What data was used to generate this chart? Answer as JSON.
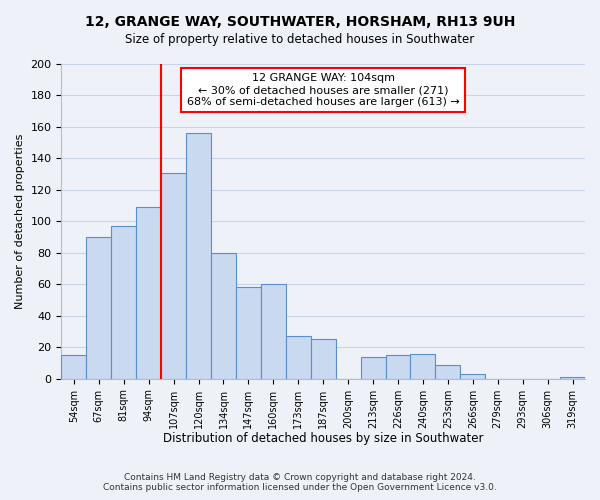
{
  "title": "12, GRANGE WAY, SOUTHWATER, HORSHAM, RH13 9UH",
  "subtitle": "Size of property relative to detached houses in Southwater",
  "xlabel": "Distribution of detached houses by size in Southwater",
  "ylabel": "Number of detached properties",
  "footer_line1": "Contains HM Land Registry data © Crown copyright and database right 2024.",
  "footer_line2": "Contains public sector information licensed under the Open Government Licence v3.0.",
  "bar_labels": [
    "54sqm",
    "67sqm",
    "81sqm",
    "94sqm",
    "107sqm",
    "120sqm",
    "134sqm",
    "147sqm",
    "160sqm",
    "173sqm",
    "187sqm",
    "200sqm",
    "213sqm",
    "226sqm",
    "240sqm",
    "253sqm",
    "266sqm",
    "279sqm",
    "293sqm",
    "306sqm",
    "319sqm"
  ],
  "bar_values": [
    15,
    90,
    97,
    109,
    131,
    156,
    80,
    58,
    60,
    27,
    25,
    0,
    14,
    15,
    16,
    9,
    3,
    0,
    0,
    0,
    1
  ],
  "bar_color": "#c8d9f0",
  "bar_edge_color": "#5b8fc9",
  "vline_x_idx": 4,
  "vline_color": "red",
  "annotation_title": "12 GRANGE WAY: 104sqm",
  "annotation_line1": "← 30% of detached houses are smaller (271)",
  "annotation_line2": "68% of semi-detached houses are larger (613) →",
  "annotation_box_color": "white",
  "annotation_box_edge_color": "red",
  "ylim": [
    0,
    200
  ],
  "yticks": [
    0,
    20,
    40,
    60,
    80,
    100,
    120,
    140,
    160,
    180,
    200
  ],
  "grid_color": "#c8d4e8",
  "background_color": "#eef2f8"
}
